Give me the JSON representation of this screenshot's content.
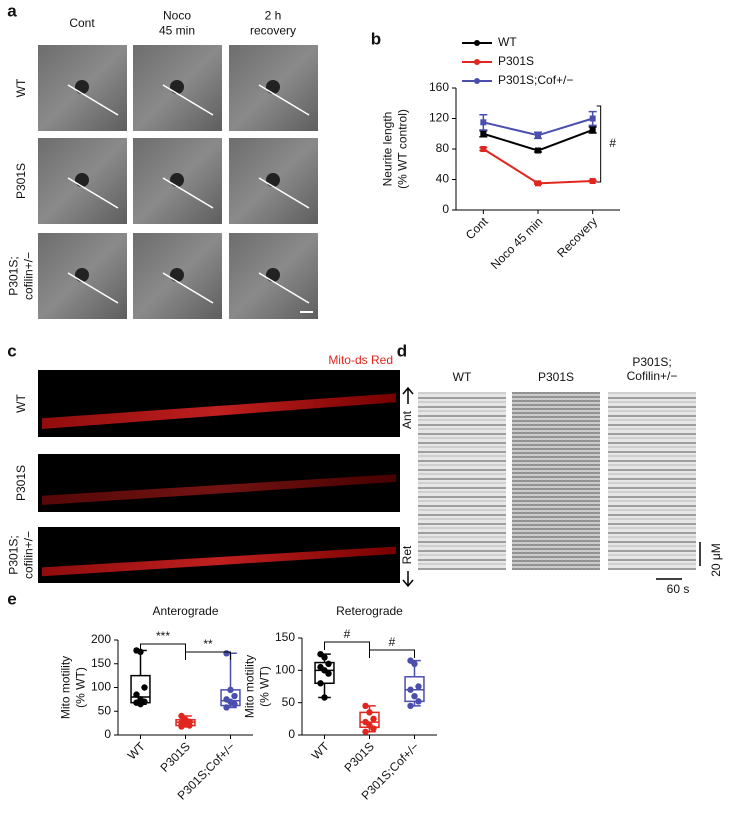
{
  "panel_labels": [
    "a",
    "b",
    "c",
    "d",
    "e"
  ],
  "panel_a": {
    "columns": [
      [
        "Cont"
      ],
      [
        "Noco",
        "45 min"
      ],
      [
        "2 h",
        "recovery"
      ]
    ],
    "rows": [
      [
        "WT"
      ],
      [
        "P301S"
      ],
      [
        "P301S;",
        "cofilin+/−"
      ]
    ]
  },
  "panel_c": {
    "legend": "Mito-ds Red",
    "rows": [
      [
        "WT"
      ],
      [
        "P301S"
      ],
      [
        "P301S;",
        "cofilin+/−"
      ]
    ]
  },
  "panel_d": {
    "columns": [
      [
        "WT"
      ],
      [
        "P301S"
      ],
      [
        "P301S;",
        "Cofilin+/−"
      ]
    ],
    "ant": "Ant",
    "ret": "Ret",
    "scale_y": "20 μM",
    "scale_x": "60 s"
  },
  "chart_data": [
    {
      "type": "line",
      "ylabel": [
        "Neurite length",
        "(% WT control)"
      ],
      "categories": [
        "Cont",
        "Noco 45 min",
        "Recovery"
      ],
      "series": [
        {
          "name": "WT",
          "color": "#000000",
          "values": [
            100,
            78,
            105
          ],
          "errors": [
            4,
            2,
            4
          ]
        },
        {
          "name": "P301S",
          "color": "#e0261f",
          "values": [
            80,
            35,
            38
          ],
          "errors": [
            2,
            1,
            1
          ]
        },
        {
          "name": "P301S;Cof+/−",
          "color": "#4a4fae",
          "values": [
            115,
            98,
            120
          ],
          "errors": [
            10,
            4,
            9
          ]
        }
      ],
      "ylim": [
        0,
        160
      ],
      "yticks": [
        0,
        40,
        80,
        120,
        160
      ],
      "annotation": "#"
    },
    {
      "type": "box",
      "title": "Anterograde",
      "ylabel": [
        "Mito motility",
        "(% WT)"
      ],
      "categories": [
        "WT",
        "P301S",
        "P301S;Cof+/−"
      ],
      "colors": [
        "#000000",
        "#e0261f",
        "#4a4fae"
      ],
      "boxes": [
        {
          "min": 65,
          "q1": 68,
          "median": 80,
          "q3": 125,
          "max": 178,
          "points": [
            178,
            175,
            100,
            85,
            75,
            70,
            68,
            65
          ]
        },
        {
          "min": 18,
          "q1": 20,
          "median": 27,
          "q3": 32,
          "max": 40,
          "points": [
            40,
            32,
            28,
            25,
            22,
            20,
            18
          ]
        },
        {
          "min": 58,
          "q1": 62,
          "median": 72,
          "q3": 95,
          "max": 172,
          "points": [
            172,
            95,
            82,
            75,
            70,
            65,
            58
          ]
        }
      ],
      "ylim": [
        0,
        200
      ],
      "yticks": [
        0,
        50,
        100,
        150,
        200
      ],
      "annotations": [
        "***",
        "**"
      ]
    },
    {
      "type": "box",
      "title": "Reterograde",
      "ylabel": [
        "Mito motility",
        "(% WT)"
      ],
      "categories": [
        "WT",
        "P301S",
        "P301S;Cof+/−"
      ],
      "colors": [
        "#000000",
        "#e0261f",
        "#4a4fae"
      ],
      "boxes": [
        {
          "min": 58,
          "q1": 80,
          "median": 100,
          "q3": 112,
          "max": 125,
          "points": [
            125,
            120,
            110,
            105,
            100,
            95,
            80,
            58
          ]
        },
        {
          "min": 5,
          "q1": 12,
          "median": 20,
          "q3": 35,
          "max": 45,
          "points": [
            45,
            35,
            25,
            20,
            15,
            10,
            5
          ]
        },
        {
          "min": 45,
          "q1": 52,
          "median": 70,
          "q3": 90,
          "max": 115,
          "points": [
            115,
            110,
            75,
            70,
            60,
            52,
            45
          ]
        }
      ],
      "ylim": [
        0,
        150
      ],
      "yticks": [
        0,
        50,
        100,
        150
      ],
      "annotations": [
        "#",
        "#"
      ]
    }
  ]
}
